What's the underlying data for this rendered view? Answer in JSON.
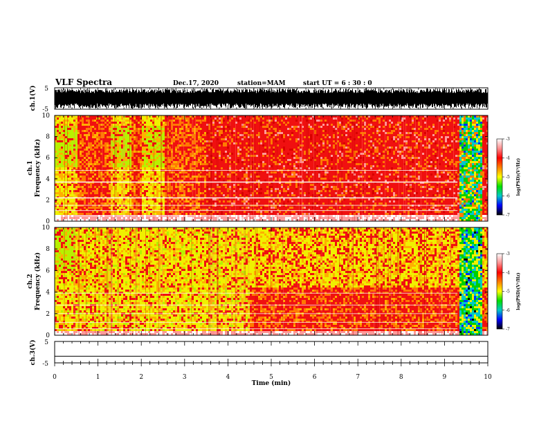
{
  "header": {
    "title": "VLF Spectra",
    "date": "Dec.17, 2020",
    "station": "station=MAM",
    "start_ut": "start  UT =   6  : 30 : 0"
  },
  "colorbar": {
    "label": "log(PSD)(V²/Hz)",
    "ticks": [
      "-3",
      "-4",
      "-5",
      "-6",
      "-7"
    ],
    "stops": [
      "#ffffff",
      "#ff9090",
      "#ff0000",
      "#ff8000",
      "#ffff00",
      "#00e000",
      "#00c8c8",
      "#0000ff",
      "#000000"
    ]
  },
  "chart_data": [
    {
      "type": "line",
      "name": "ch.1(V)",
      "ylabel": "ch.1(V)",
      "ylim": [
        -5,
        5
      ],
      "yticks": [
        "5",
        "-5"
      ],
      "description_values": "dense broadband waveform, roughly -5 to 5 V"
    },
    {
      "type": "heatmap",
      "name": "ch.1",
      "ylabel_channel": "ch.1",
      "ylabel": "Frequency  (kHz)",
      "ylim": [
        0,
        10
      ],
      "yticks": [
        "0",
        "2",
        "4",
        "6",
        "8",
        "10"
      ],
      "xlim": [
        0,
        10
      ],
      "banded_intervals_min": [
        [
          0.0,
          0.55
        ],
        [
          1.3,
          1.75
        ],
        [
          2.0,
          2.55
        ]
      ],
      "broadband_interval_min": [
        9.35,
        9.85
      ]
    },
    {
      "type": "heatmap",
      "name": "ch.2",
      "ylabel_channel": "ch.2",
      "ylabel": "Frequency  (kHz)",
      "ylim": [
        0,
        10
      ],
      "yticks": [
        "0",
        "2",
        "4",
        "6",
        "8",
        "10"
      ],
      "xlim": [
        0,
        10
      ],
      "high_level_interval_min": [
        0.0,
        4.5
      ],
      "broadband_interval_min": [
        9.35,
        9.85
      ]
    },
    {
      "type": "line",
      "name": "ch.3(V)",
      "ylabel": "ch.3(V)",
      "ylim": [
        -5,
        5
      ],
      "yticks": [
        "5",
        "-5"
      ],
      "x": [
        0,
        10
      ],
      "y": [
        -1.9,
        -1.9
      ]
    }
  ],
  "xaxis": {
    "label": "Time  (min)",
    "ticks": [
      "0",
      "1",
      "2",
      "3",
      "4",
      "5",
      "6",
      "7",
      "8",
      "9",
      "10"
    ],
    "range": [
      0,
      10
    ]
  }
}
